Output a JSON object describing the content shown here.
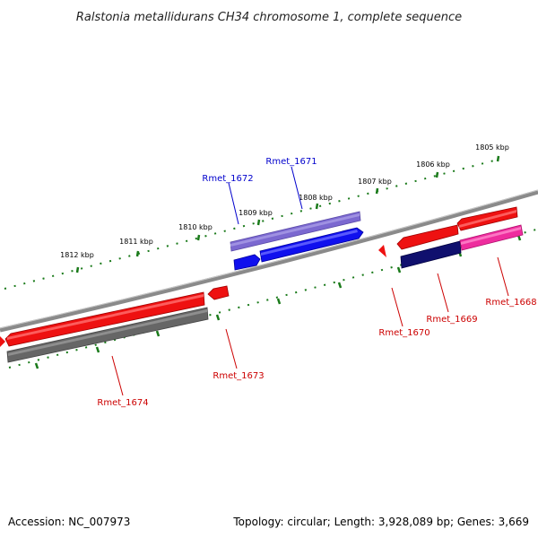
{
  "title": "Ralstonia metallidurans CH34 chromosome 1, complete sequence",
  "ticks": {
    "k1805": "1805 kbp",
    "k1806": "1806 kbp",
    "k1807": "1807 kbp",
    "k1808": "1808 kbp",
    "k1809": "1809 kbp",
    "k1810": "1810 kbp",
    "k1811": "1811 kbp",
    "k1812": "1812 kbp"
  },
  "genes": {
    "g1668": "Rmet_1668",
    "g1669": "Rmet_1669",
    "g1670": "Rmet_1670",
    "g1671": "Rmet_1671",
    "g1672": "Rmet_1672",
    "g1673": "Rmet_1673",
    "g1674": "Rmet_1674"
  },
  "colors": {
    "plus_strand": "#0000ee",
    "minus_strand": "#ee0000",
    "backbone": "#888888",
    "ticks": "#1a7a1a"
  },
  "footer": {
    "accession": "Accession: NC_007973",
    "summary": "Topology: circular; Length: 3,928,089 bp; Genes: 3,669"
  }
}
